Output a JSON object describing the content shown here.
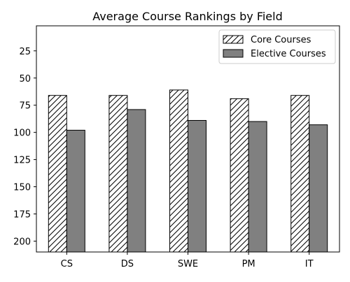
{
  "chart_data": {
    "type": "bar",
    "title": "Average Course Rankings by Field",
    "xlabel": "",
    "ylabel": "",
    "categories": [
      "CS",
      "DS",
      "SWE",
      "PM",
      "IT"
    ],
    "series": [
      {
        "name": "Core Courses",
        "values": [
          66,
          66,
          61,
          69,
          66
        ],
        "color": "#ffffff",
        "pattern": "hatch"
      },
      {
        "name": "Elective Courses",
        "values": [
          98,
          79,
          89,
          90,
          93
        ],
        "color": "#808080",
        "pattern": "solid"
      }
    ],
    "ylim": [
      210,
      2
    ],
    "y_inverted": true,
    "yticks": [
      25,
      50,
      75,
      100,
      125,
      150,
      175,
      200
    ],
    "grid": false,
    "legend_position": "top-right"
  }
}
